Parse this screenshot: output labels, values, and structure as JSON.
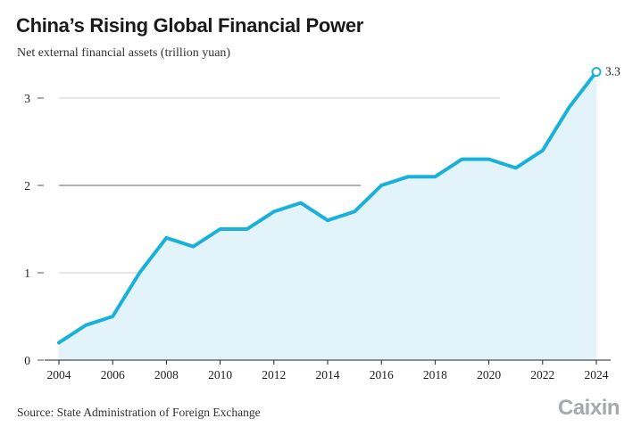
{
  "header": {
    "title": "China’s Rising Global Financial Power",
    "subtitle": "Net external financial assets (trillion yuan)"
  },
  "footer": {
    "source": "Source: State Administration of Foreign Exchange",
    "logo": "Caixin"
  },
  "colors": {
    "line": "#1ab1d9",
    "area": "#e3f3fa",
    "grid": "#cccccc",
    "axis": "#555555"
  },
  "chart_data": {
    "type": "area",
    "title": "China’s Rising Global Financial Power",
    "ylabel": "Net external financial assets (trillion yuan)",
    "xlabel": "",
    "x": [
      2004,
      2005,
      2006,
      2007,
      2008,
      2009,
      2010,
      2011,
      2012,
      2013,
      2014,
      2015,
      2016,
      2017,
      2018,
      2019,
      2020,
      2021,
      2022,
      2023,
      2024
    ],
    "values": [
      0.2,
      0.4,
      0.5,
      1.0,
      1.4,
      1.3,
      1.5,
      1.5,
      1.7,
      1.8,
      1.6,
      1.7,
      2.0,
      2.1,
      2.1,
      2.3,
      2.3,
      2.2,
      2.4,
      2.9,
      3.3
    ],
    "xticks": [
      "2004",
      "2006",
      "2008",
      "2010",
      "2012",
      "2014",
      "2016",
      "2018",
      "2020",
      "2022",
      "2024"
    ],
    "yticks": [
      "0",
      "1",
      "2",
      "3"
    ],
    "ylim": [
      0,
      3.4
    ],
    "xlim": [
      2004,
      2024
    ],
    "grid": true,
    "annotation": {
      "year": 2024,
      "value": 3.3,
      "label": "3.3"
    }
  }
}
